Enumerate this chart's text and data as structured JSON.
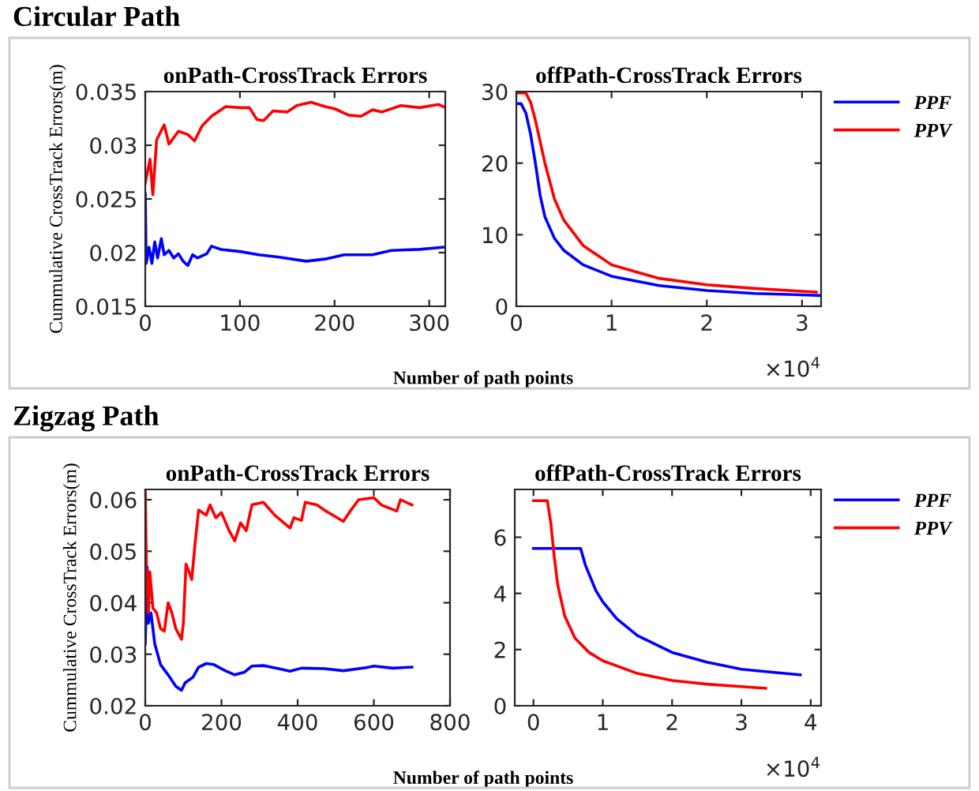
{
  "chart_data": [
    {
      "type": "line",
      "title": "onPath-CrossTrack Errors",
      "xlabel": "Number of path points",
      "ylabel": "Cummulative CrossTrack Errors(m)",
      "annotations": [
        "Circular Path"
      ],
      "xlim": [
        0,
        317
      ],
      "ylim": [
        0.015,
        0.035
      ],
      "xticks": [
        0,
        100,
        200,
        300
      ],
      "yticks": [
        0.015,
        0.02,
        0.025,
        0.03,
        0.035
      ],
      "grid": false,
      "legend": false,
      "line_style": "solid",
      "marker": "none",
      "series": [
        {
          "color": "#0000ff",
          "x": [
            0,
            1,
            4,
            7,
            10,
            13,
            17,
            20,
            25,
            30,
            35,
            40,
            45,
            50,
            55,
            65,
            70,
            80,
            100,
            120,
            140,
            170,
            190,
            210,
            240,
            260,
            290,
            315
          ],
          "values": [
            0.0255,
            0.019,
            0.0205,
            0.019,
            0.021,
            0.0195,
            0.0213,
            0.0198,
            0.0202,
            0.0195,
            0.0199,
            0.0192,
            0.0188,
            0.0198,
            0.0195,
            0.0199,
            0.0206,
            0.0203,
            0.0201,
            0.0198,
            0.0196,
            0.0192,
            0.0194,
            0.0198,
            0.0198,
            0.0202,
            0.0203,
            0.0205
          ]
        },
        {
          "color": "#ff0000",
          "x": [
            0,
            5,
            8,
            12,
            20,
            25,
            35,
            45,
            52,
            60,
            70,
            85,
            100,
            110,
            118,
            125,
            135,
            150,
            160,
            175,
            190,
            200,
            215,
            228,
            240,
            250,
            270,
            290,
            310,
            315
          ],
          "values": [
            0.0265,
            0.0287,
            0.0254,
            0.0305,
            0.0319,
            0.0301,
            0.0313,
            0.031,
            0.0304,
            0.0318,
            0.0327,
            0.0336,
            0.0335,
            0.0335,
            0.0324,
            0.0323,
            0.0332,
            0.0331,
            0.0337,
            0.034,
            0.0336,
            0.0334,
            0.0328,
            0.0327,
            0.0333,
            0.0331,
            0.0337,
            0.0335,
            0.0338,
            0.0336
          ]
        }
      ]
    },
    {
      "type": "line",
      "title": "offPath-CrossTrack Errors",
      "annotations": [
        "×10$^{4}$"
      ],
      "xlim": [
        0,
        3.2
      ],
      "ylim": [
        0,
        30
      ],
      "xticks": [
        0,
        1,
        2,
        3
      ],
      "yticks": [
        0,
        10,
        20,
        30
      ],
      "grid": false,
      "legend": "right",
      "line_style": "solid",
      "marker": "none",
      "series": [
        {
          "name": "PPF",
          "color": "#0000ff",
          "x": [
            0,
            0.05,
            0.1,
            0.15,
            0.2,
            0.25,
            0.3,
            0.4,
            0.5,
            0.7,
            1.0,
            1.5,
            2.0,
            2.5,
            3.0,
            3.2
          ],
          "values": [
            28.3,
            28.3,
            27,
            24,
            20,
            15.5,
            12.5,
            9.5,
            7.8,
            5.8,
            4.2,
            2.9,
            2.2,
            1.8,
            1.6,
            1.5
          ]
        },
        {
          "name": "PPV",
          "color": "#ff0000",
          "x": [
            0,
            0.1,
            0.15,
            0.2,
            0.3,
            0.4,
            0.5,
            0.7,
            1.0,
            1.5,
            2.0,
            2.5,
            3.0,
            3.15
          ],
          "values": [
            29.8,
            29.8,
            28.5,
            26,
            20,
            15,
            12,
            8.5,
            5.8,
            3.9,
            3.0,
            2.5,
            2.1,
            2.0
          ]
        }
      ]
    },
    {
      "type": "line",
      "title": "onPath-CrossTrack Errors",
      "xlabel": "Number of path points",
      "ylabel": "Cummulative CrossTrack Errors(m)",
      "annotations": [
        "Zigzag Path"
      ],
      "xlim": [
        0,
        800
      ],
      "ylim": [
        0.02,
        0.062
      ],
      "xticks": [
        0,
        200,
        400,
        600,
        800
      ],
      "yticks": [
        0.02,
        0.03,
        0.04,
        0.05,
        0.06
      ],
      "grid": false,
      "legend": false,
      "line_style": "solid",
      "marker": "none",
      "series": [
        {
          "color": "#0000ff",
          "x": [
            0,
            5,
            8,
            15,
            25,
            40,
            60,
            80,
            95,
            105,
            125,
            140,
            160,
            180,
            210,
            235,
            260,
            280,
            310,
            350,
            380,
            410,
            470,
            520,
            580,
            600,
            650,
            700
          ],
          "values": [
            0.032,
            0.047,
            0.036,
            0.038,
            0.032,
            0.028,
            0.026,
            0.0238,
            0.023,
            0.0245,
            0.0255,
            0.0275,
            0.0282,
            0.028,
            0.0268,
            0.026,
            0.0265,
            0.0277,
            0.0278,
            0.0272,
            0.0267,
            0.0273,
            0.0272,
            0.0268,
            0.0274,
            0.0277,
            0.0273,
            0.0275
          ]
        },
        {
          "color": "#ff0000",
          "x": [
            0,
            3,
            8,
            12,
            20,
            30,
            40,
            50,
            60,
            70,
            80,
            95,
            100,
            107,
            115,
            122,
            130,
            140,
            160,
            170,
            185,
            200,
            220,
            235,
            250,
            265,
            280,
            310,
            340,
            380,
            390,
            410,
            420,
            450,
            470,
            520,
            540,
            560,
            600,
            620,
            660,
            670,
            700
          ],
          "values": [
            0.062,
            0.047,
            0.038,
            0.046,
            0.039,
            0.038,
            0.035,
            0.0345,
            0.04,
            0.038,
            0.035,
            0.0329,
            0.036,
            0.0475,
            0.046,
            0.0445,
            0.051,
            0.058,
            0.057,
            0.059,
            0.0565,
            0.0575,
            0.054,
            0.052,
            0.0555,
            0.054,
            0.059,
            0.0595,
            0.057,
            0.0545,
            0.0565,
            0.056,
            0.0595,
            0.059,
            0.058,
            0.0558,
            0.058,
            0.06,
            0.0604,
            0.059,
            0.0578,
            0.06,
            0.059
          ]
        }
      ]
    },
    {
      "type": "line",
      "title": "offPath-CrossTrack Errors",
      "annotations": [
        "×10$^{4}$"
      ],
      "xlim": [
        -0.27,
        4.15
      ],
      "ylim": [
        0,
        7.7
      ],
      "xticks": [
        0,
        1,
        2,
        3,
        4
      ],
      "yticks": [
        0,
        2,
        4,
        6
      ],
      "grid": false,
      "legend": "right",
      "line_style": "solid",
      "marker": "none",
      "series": [
        {
          "name": "PPF",
          "color": "#0000ff",
          "x": [
            0,
            0.68,
            0.75,
            0.9,
            1.0,
            1.2,
            1.5,
            2.0,
            2.5,
            3.0,
            3.5,
            3.85
          ],
          "values": [
            5.6,
            5.6,
            5.0,
            4.1,
            3.7,
            3.1,
            2.5,
            1.9,
            1.55,
            1.3,
            1.18,
            1.1
          ]
        },
        {
          "name": "PPV",
          "color": "#ff0000",
          "x": [
            0,
            0.2,
            0.25,
            0.3,
            0.35,
            0.45,
            0.6,
            0.8,
            1.0,
            1.5,
            2.0,
            2.5,
            3.0,
            3.35
          ],
          "values": [
            7.3,
            7.3,
            6.5,
            5.3,
            4.3,
            3.2,
            2.4,
            1.9,
            1.6,
            1.15,
            0.9,
            0.77,
            0.68,
            0.62
          ]
        }
      ]
    }
  ]
}
